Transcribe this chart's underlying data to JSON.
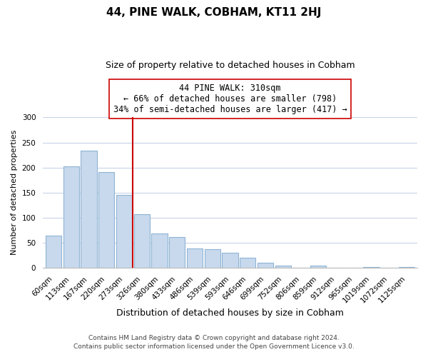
{
  "title": "44, PINE WALK, COBHAM, KT11 2HJ",
  "subtitle": "Size of property relative to detached houses in Cobham",
  "xlabel": "Distribution of detached houses by size in Cobham",
  "ylabel": "Number of detached properties",
  "bar_labels": [
    "60sqm",
    "113sqm",
    "167sqm",
    "220sqm",
    "273sqm",
    "326sqm",
    "380sqm",
    "433sqm",
    "486sqm",
    "539sqm",
    "593sqm",
    "646sqm",
    "699sqm",
    "752sqm",
    "806sqm",
    "859sqm",
    "912sqm",
    "965sqm",
    "1019sqm",
    "1072sqm",
    "1125sqm"
  ],
  "bar_values": [
    65,
    202,
    234,
    191,
    145,
    107,
    69,
    61,
    39,
    37,
    30,
    20,
    10,
    4,
    0,
    4,
    0,
    0,
    1,
    0,
    1
  ],
  "bar_color": "#c8d9ed",
  "bar_edge_color": "#8eb4d4",
  "vline_color": "#cc0000",
  "vline_x_index": 5,
  "annotation_line1": "44 PINE WALK: 310sqm",
  "annotation_line2": "← 66% of detached houses are smaller (798)",
  "annotation_line3": "34% of semi-detached houses are larger (417) →",
  "annotation_box_color": "#ffffff",
  "annotation_box_edge_color": "#cc0000",
  "footer_line1": "Contains HM Land Registry data © Crown copyright and database right 2024.",
  "footer_line2": "Contains public sector information licensed under the Open Government Licence v3.0.",
  "ylim": [
    0,
    300
  ],
  "figsize": [
    6.0,
    5.0
  ],
  "dpi": 100,
  "bg_color": "#ffffff",
  "grid_color": "#c8d4e8",
  "title_fontsize": 11,
  "subtitle_fontsize": 9,
  "ylabel_fontsize": 8,
  "xlabel_fontsize": 9,
  "tick_fontsize": 7.5,
  "annotation_fontsize": 8.5,
  "footer_fontsize": 6.5
}
